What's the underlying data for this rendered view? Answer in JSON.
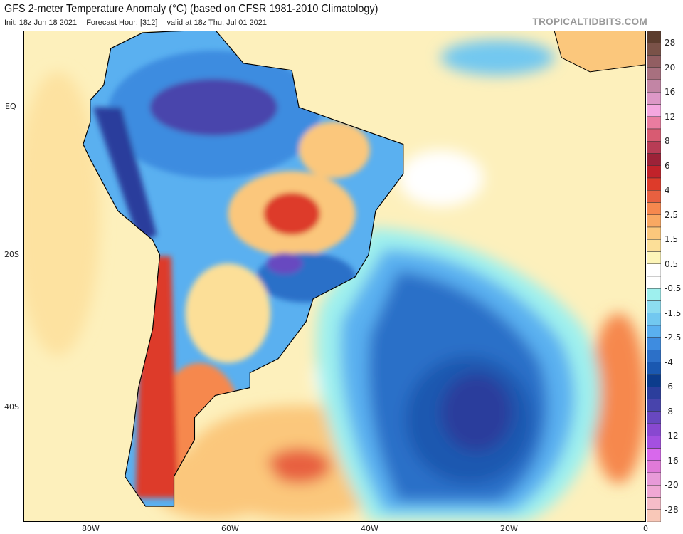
{
  "header": {
    "title": "GFS 2-meter Temperature Anomaly (°C) (based on CFSR 1981-2010 Climatology)",
    "init": "Init: 18z Jun 18 2021",
    "forecast_hour": "Forecast Hour: [312]",
    "valid": "valid at 18z Thu, Jul 01 2021",
    "site": "TROPICALTIDBITS.COM"
  },
  "axes": {
    "lat_labels": [
      "EQ",
      "20S",
      "40S"
    ],
    "lon_labels": [
      "80W",
      "60W",
      "40W",
      "20W",
      "0"
    ]
  },
  "colorbar": {
    "labels": [
      "28",
      "20",
      "16",
      "12",
      "8",
      "6",
      "4",
      "2.5",
      "1.5",
      "0.5",
      "-0.5",
      "-1.5",
      "-2.5",
      "-4",
      "-6",
      "-8",
      "-12",
      "-16",
      "-20",
      "-28"
    ],
    "colors": [
      "#5c3d2e",
      "#7a5248",
      "#925e62",
      "#a8707f",
      "#c285a5",
      "#dd98c7",
      "#f5a7e0",
      "#ea7ca0",
      "#d85b72",
      "#b83c55",
      "#9c2238",
      "#c1222a",
      "#dd3b2a",
      "#e86040",
      "#f6884e",
      "#f9a862",
      "#fbc77c",
      "#fcdf98",
      "#fdf5b8",
      "#ffffff",
      "#ffffff",
      "#9ef0ee",
      "#8cdcf0",
      "#72c8f0",
      "#5ab0f0",
      "#3e8ce0",
      "#2c70c8",
      "#1a58b0",
      "#0c3c8c",
      "#2c3e9c",
      "#4844ac",
      "#6848c0",
      "#8848d0",
      "#a450e0",
      "#d868ec",
      "#e07ad8",
      "#e89ad8",
      "#f0a8d4",
      "#f6bcc8",
      "#f9c8b8"
    ]
  }
}
